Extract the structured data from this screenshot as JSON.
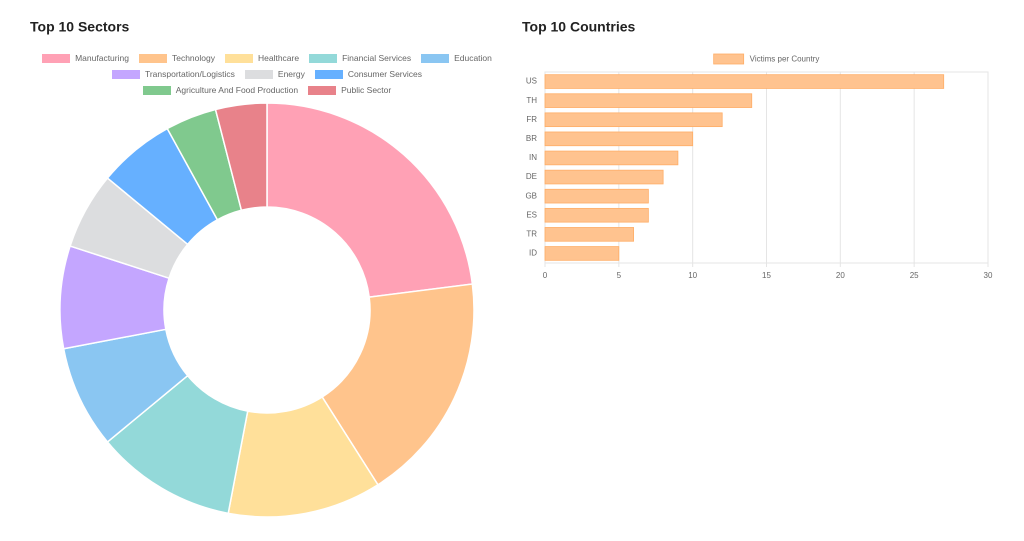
{
  "chart_data": [
    {
      "type": "doughnut",
      "title": "Top 10 Sectors",
      "categories": [
        "Manufacturing",
        "Technology",
        "Healthcare",
        "Financial Services",
        "Education",
        "Transportation/Logistics",
        "Energy",
        "Consumer Services",
        "Agriculture And Food Production",
        "Public Sector"
      ],
      "values": [
        23,
        18,
        12,
        11,
        8,
        8,
        6,
        6,
        4,
        4
      ],
      "colors": [
        "#ffa1b5",
        "#ffc48c",
        "#ffe09a",
        "#93d9d9",
        "#8ac6f2",
        "#c4a6ff",
        "#dcdddf",
        "#66b0ff",
        "#80c98e",
        "#e8828a"
      ]
    },
    {
      "type": "bar",
      "orientation": "horizontal",
      "title": "Top 10 Countries",
      "categories": [
        "US",
        "TH",
        "FR",
        "BR",
        "IN",
        "DE",
        "GB",
        "ES",
        "TR",
        "ID"
      ],
      "series": [
        {
          "name": "Victims per Country",
          "color": "#ffc38f",
          "values": [
            27,
            14,
            12,
            10,
            9,
            8,
            7,
            7,
            6,
            5
          ]
        }
      ],
      "xlim": [
        0,
        30
      ],
      "xticks": [
        0,
        5,
        10,
        15,
        20,
        25,
        30
      ],
      "grid": true
    }
  ]
}
